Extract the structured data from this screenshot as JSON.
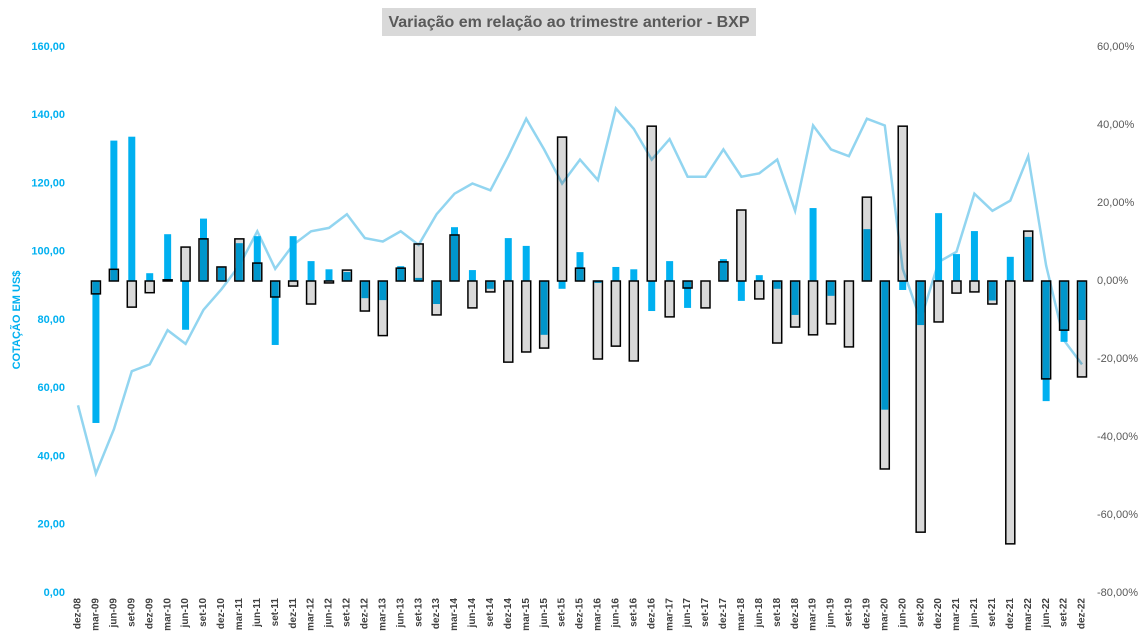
{
  "chart_data": {
    "type": "bar_line",
    "title": "Variação em relação ao trimestre anterior - BXP",
    "ylabel": "COTAÇÃO EM US$",
    "categories": [
      "dez-08",
      "mar-09",
      "jun-09",
      "set-09",
      "dez-09",
      "mar-10",
      "jun-10",
      "set-10",
      "dez-10",
      "mar-11",
      "jun-11",
      "set-11",
      "dez-11",
      "mar-12",
      "jun-12",
      "set-12",
      "dez-12",
      "mar-13",
      "jun-13",
      "set-13",
      "dez-13",
      "mar-14",
      "jun-14",
      "set-14",
      "dez-14",
      "mar-15",
      "jun-15",
      "set-15",
      "dez-15",
      "mar-16",
      "jun-16",
      "set-16",
      "dez-16",
      "mar-17",
      "jun-17",
      "set-17",
      "dez-17",
      "mar-18",
      "jun-18",
      "set-18",
      "dez-18",
      "mar-19",
      "jun-19",
      "set-19",
      "dez-19",
      "mar-20",
      "jun-20",
      "set-20",
      "dez-20",
      "mar-21",
      "jun-21",
      "set-21",
      "dez-21",
      "mar-22",
      "jun-22",
      "set-22",
      "dez-22"
    ],
    "series": [
      {
        "type": "bar",
        "axis": "y2",
        "color": "#00b0f0",
        "values": [
          null,
          -36.4,
          36,
          37,
          2,
          12,
          -12.5,
          16,
          3.6,
          9.7,
          11.5,
          -16.4,
          11.5,
          5.1,
          3,
          2.3,
          -4.4,
          -4.9,
          3.8,
          0.8,
          -5.9,
          13.8,
          2.8,
          -2,
          11,
          9,
          -13.8,
          -2,
          7.4,
          -0.5,
          3.6,
          3,
          -7.7,
          5.1,
          -6.9,
          0,
          5.6,
          -5.1,
          1.5,
          -2,
          -8.7,
          18.7,
          -3.8,
          0,
          13.3,
          -33,
          -2.3,
          -11.3,
          17.4,
          6.9,
          12.8,
          -5,
          6.2,
          11.3,
          -30.8,
          -15.6,
          -10
        ]
      },
      {
        "type": "bar",
        "axis": "y2",
        "color": "#d9d9d9",
        "edgecolor": "#000000",
        "values": [
          null,
          -3.3,
          3,
          -6.7,
          -3,
          0.3,
          8.7,
          10.8,
          3.6,
          10.8,
          4.6,
          -4.1,
          -1.3,
          -5.9,
          -0.5,
          2.8,
          -7.7,
          -14,
          3.3,
          9.5,
          -8.7,
          11.8,
          -6.9,
          -2.8,
          -20.8,
          -18.2,
          -17.2,
          36.9,
          3.3,
          -20,
          -16.7,
          -20.5,
          39.7,
          -9.2,
          -1.8,
          -6.9,
          4.9,
          18.2,
          -4.6,
          -15.9,
          -11.8,
          -13.8,
          -11,
          -16.9,
          21.5,
          -48.2,
          39.7,
          -64.4,
          -10.5,
          -3.1,
          -2.8,
          -5.9,
          -67.4,
          12.8,
          -25.1,
          -12.6,
          -24.6
        ]
      },
      {
        "type": "line",
        "axis": "y",
        "color": "#92d5f0",
        "values": [
          55,
          35,
          48,
          65,
          67,
          77,
          73,
          83,
          89,
          96,
          106,
          95,
          102,
          106,
          107,
          111,
          104,
          103,
          106,
          102,
          111,
          117,
          120,
          118,
          128,
          139,
          130,
          120,
          127,
          121,
          142,
          136,
          127,
          133,
          122,
          122,
          130,
          122,
          123,
          127,
          112,
          137,
          130,
          128,
          139,
          137,
          95,
          80,
          97,
          100,
          117,
          112,
          115,
          128,
          96,
          74,
          67
        ]
      }
    ],
    "ylim": [
      0,
      160
    ],
    "yticks": [
      {
        "value": 0,
        "label": "0,00"
      },
      {
        "value": 20,
        "label": "20,00"
      },
      {
        "value": 40,
        "label": "40,00"
      },
      {
        "value": 60,
        "label": "60,00"
      },
      {
        "value": 80,
        "label": "80,00"
      },
      {
        "value": 100,
        "label": "100,00"
      },
      {
        "value": 120,
        "label": "120,00"
      },
      {
        "value": 140,
        "label": "140,00"
      },
      {
        "value": 160,
        "label": "160,00"
      }
    ],
    "y2lim": [
      -80,
      60
    ],
    "y2ticks": [
      {
        "value": -80,
        "label": "-80,00%"
      },
      {
        "value": -60,
        "label": "-60,00%"
      },
      {
        "value": -40,
        "label": "-40,00%"
      },
      {
        "value": -20,
        "label": "-20,00%"
      },
      {
        "value": 0,
        "label": "0,00%"
      },
      {
        "value": 20,
        "label": "20,00%"
      },
      {
        "value": 40,
        "label": "40,00%"
      },
      {
        "value": 60,
        "label": "60,00%"
      }
    ],
    "yaxis_color": "#00b0f0"
  }
}
